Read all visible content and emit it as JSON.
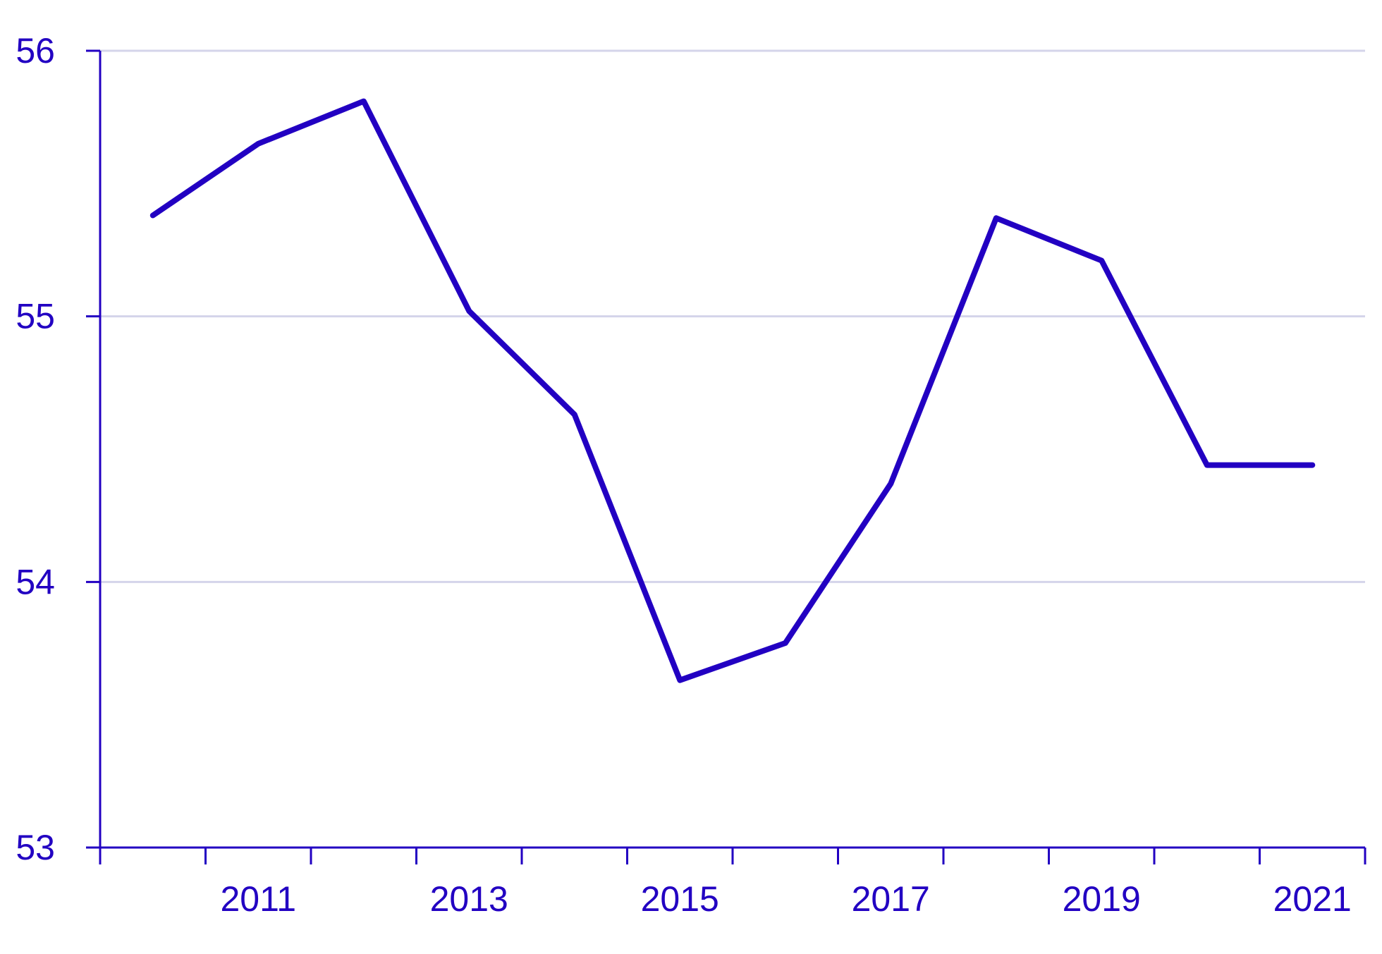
{
  "colors": {
    "axis": "#2200c2",
    "line": "#2200c2",
    "grid": "#d4d4ea",
    "text": "#2200c2"
  },
  "chart_data": {
    "type": "line",
    "title": "",
    "xlabel": "",
    "ylabel": "",
    "x": [
      2010,
      2011,
      2012,
      2013,
      2014,
      2015,
      2016,
      2017,
      2018,
      2019,
      2020,
      2021
    ],
    "series": [
      {
        "values": [
          55.38,
          55.65,
          55.81,
          55.02,
          54.63,
          53.63,
          53.77,
          54.37,
          55.37,
          55.21,
          54.44,
          54.44
        ]
      }
    ],
    "xlim": [
      2009.5,
      2021.5
    ],
    "ylim": [
      53,
      56
    ],
    "y_ticks": [
      "53",
      "54",
      "55",
      "56"
    ],
    "x_tick_labels": [
      "2011",
      "2013",
      "2015",
      "2017",
      "2019",
      "2021"
    ],
    "grid": "horizontal",
    "legend": "none"
  }
}
